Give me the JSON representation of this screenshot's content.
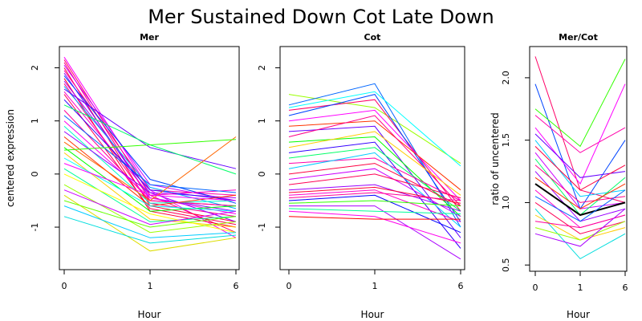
{
  "title": "Mer Sustained Down Cot Late Down",
  "chart_data": [
    {
      "type": "line",
      "title": "Mer",
      "xlabel": "Hour",
      "ylabel": "centered expression",
      "x": [
        "0",
        "1",
        "6"
      ],
      "xticks": [
        "0",
        "1",
        "6"
      ],
      "yticks": [
        "-1",
        "0",
        "1",
        "2"
      ],
      "ylim": [
        -1.8,
        2.4
      ],
      "series": [
        {
          "values": [
            2.2,
            -0.3,
            -1.2
          ],
          "color": "#ff00ff"
        },
        {
          "values": [
            2.15,
            -0.4,
            -1.1
          ],
          "color": "#ff0066"
        },
        {
          "values": [
            2.1,
            -0.5,
            -0.6
          ],
          "color": "#ff0080"
        },
        {
          "values": [
            2.05,
            -0.2,
            -0.5
          ],
          "color": "#cc00ff"
        },
        {
          "values": [
            2.0,
            -0.6,
            -0.9
          ],
          "color": "#ff0040"
        },
        {
          "values": [
            1.95,
            -0.3,
            -0.4
          ],
          "color": "#ff00aa"
        },
        {
          "values": [
            1.9,
            -0.45,
            -0.7
          ],
          "color": "#8800ff"
        },
        {
          "values": [
            1.85,
            -0.1,
            -0.55
          ],
          "color": "#0044ff"
        },
        {
          "values": [
            1.8,
            -0.7,
            -1.0
          ],
          "color": "#ff0033"
        },
        {
          "values": [
            1.75,
            -0.35,
            -0.45
          ],
          "color": "#aa00ff"
        },
        {
          "values": [
            1.7,
            -0.55,
            -0.8
          ],
          "color": "#ff0088"
        },
        {
          "values": [
            1.65,
            -0.25,
            -0.65
          ],
          "color": "#00aaff"
        },
        {
          "values": [
            1.6,
            0.5,
            0.1
          ],
          "color": "#6600ff"
        },
        {
          "values": [
            1.55,
            -0.4,
            -0.3
          ],
          "color": "#ff00cc"
        },
        {
          "values": [
            1.5,
            -0.65,
            -0.95
          ],
          "color": "#ff0055"
        },
        {
          "values": [
            1.4,
            -0.3,
            -0.5
          ],
          "color": "#3300ff"
        },
        {
          "values": [
            1.3,
            0.55,
            0.0
          ],
          "color": "#00ff66"
        },
        {
          "values": [
            1.2,
            -0.5,
            -0.6
          ],
          "color": "#ff0099"
        },
        {
          "values": [
            1.1,
            -0.2,
            -0.35
          ],
          "color": "#0066ff"
        },
        {
          "values": [
            1.0,
            -0.45,
            -0.75
          ],
          "color": "#ff00ee"
        },
        {
          "values": [
            0.9,
            -0.55,
            -0.5
          ],
          "color": "#00ffcc"
        },
        {
          "values": [
            0.8,
            -0.35,
            -0.9
          ],
          "color": "#9900ff"
        },
        {
          "values": [
            0.7,
            -0.6,
            -0.4
          ],
          "color": "#ff3300"
        },
        {
          "values": [
            0.6,
            -0.5,
            0.7
          ],
          "color": "#ff6600"
        },
        {
          "values": [
            0.5,
            -0.7,
            -0.6
          ],
          "color": "#00ff00"
        },
        {
          "values": [
            0.45,
            0.55,
            0.65
          ],
          "color": "#33ff00"
        },
        {
          "values": [
            0.4,
            -0.85,
            -1.0
          ],
          "color": "#ffcc00"
        },
        {
          "values": [
            0.3,
            -0.6,
            -0.7
          ],
          "color": "#00ffff"
        },
        {
          "values": [
            0.2,
            -0.4,
            -0.5
          ],
          "color": "#ff00ff"
        },
        {
          "values": [
            0.1,
            -0.9,
            -0.8
          ],
          "color": "#00ff99"
        },
        {
          "values": [
            0.0,
            -0.75,
            -1.1
          ],
          "color": "#ffff00"
        },
        {
          "values": [
            -0.2,
            -1.1,
            -0.9
          ],
          "color": "#99ff00"
        },
        {
          "values": [
            -0.3,
            -0.95,
            -0.7
          ],
          "color": "#cc00ff"
        },
        {
          "values": [
            -0.4,
            -1.45,
            -1.2
          ],
          "color": "#dddd00"
        },
        {
          "values": [
            -0.5,
            -1.0,
            -0.8
          ],
          "color": "#66ff00"
        },
        {
          "values": [
            -0.6,
            -1.2,
            -1.1
          ],
          "color": "#00ccff"
        },
        {
          "values": [
            -0.8,
            -1.3,
            -1.15
          ],
          "color": "#00dddd"
        }
      ]
    },
    {
      "type": "line",
      "title": "Cot",
      "xlabel": "Hour",
      "ylabel": "",
      "x": [
        "0",
        "1",
        "6"
      ],
      "xticks": [
        "0",
        "1",
        "6"
      ],
      "yticks": [
        "-1",
        "0",
        "1",
        "2"
      ],
      "ylim": [
        -1.8,
        2.4
      ],
      "series": [
        {
          "values": [
            1.5,
            1.25,
            0.2
          ],
          "color": "#99ff00"
        },
        {
          "values": [
            1.3,
            1.7,
            -1.0
          ],
          "color": "#0066ff"
        },
        {
          "values": [
            1.25,
            1.55,
            0.15
          ],
          "color": "#00ffff"
        },
        {
          "values": [
            1.2,
            1.4,
            -0.7
          ],
          "color": "#ff0066"
        },
        {
          "values": [
            1.1,
            1.5,
            -0.9
          ],
          "color": "#0044ff"
        },
        {
          "values": [
            1.0,
            1.2,
            -0.5
          ],
          "color": "#ff00ff"
        },
        {
          "values": [
            0.9,
            1.0,
            -0.3
          ],
          "color": "#ff3300"
        },
        {
          "values": [
            0.8,
            0.9,
            -1.2
          ],
          "color": "#6600ff"
        },
        {
          "values": [
            0.7,
            1.1,
            -0.6
          ],
          "color": "#ff0088"
        },
        {
          "values": [
            0.6,
            0.7,
            -0.8
          ],
          "color": "#00ff00"
        },
        {
          "values": [
            0.5,
            0.8,
            -0.4
          ],
          "color": "#ffcc00"
        },
        {
          "values": [
            0.4,
            0.6,
            -1.4
          ],
          "color": "#3300ff"
        },
        {
          "values": [
            0.3,
            0.5,
            -0.7
          ],
          "color": "#00ff66"
        },
        {
          "values": [
            0.2,
            0.3,
            -0.5
          ],
          "color": "#ff00aa"
        },
        {
          "values": [
            0.1,
            0.4,
            -1.0
          ],
          "color": "#00ccff"
        },
        {
          "values": [
            0.0,
            0.2,
            -0.6
          ],
          "color": "#ff0040"
        },
        {
          "values": [
            -0.1,
            0.1,
            -0.8
          ],
          "color": "#cc00ff"
        },
        {
          "values": [
            -0.2,
            0.0,
            -0.45
          ],
          "color": "#ff0055"
        },
        {
          "values": [
            -0.3,
            -0.2,
            -0.7
          ],
          "color": "#9900ff"
        },
        {
          "values": [
            -0.35,
            -0.25,
            -0.55
          ],
          "color": "#ff0033"
        },
        {
          "values": [
            -0.4,
            -0.3,
            -0.9
          ],
          "color": "#ff00cc"
        },
        {
          "values": [
            -0.45,
            -0.35,
            -0.5
          ],
          "color": "#ff0099"
        },
        {
          "values": [
            -0.5,
            -0.4,
            -1.1
          ],
          "color": "#0000ff"
        },
        {
          "values": [
            -0.55,
            -0.5,
            -0.6
          ],
          "color": "#33ff00"
        },
        {
          "values": [
            -0.6,
            -0.6,
            -1.6
          ],
          "color": "#aa00ff"
        },
        {
          "values": [
            -0.65,
            -0.7,
            -0.75
          ],
          "color": "#00ff99"
        },
        {
          "values": [
            -0.7,
            -0.8,
            -1.3
          ],
          "color": "#ff00ee"
        },
        {
          "values": [
            -0.8,
            -0.85,
            -0.85
          ],
          "color": "#ff0000"
        }
      ]
    },
    {
      "type": "line",
      "title": "Mer/Cot",
      "xlabel": "Hour",
      "ylabel": "ratio of uncentered",
      "x": [
        "0",
        "1",
        "6"
      ],
      "xticks": [
        "0",
        "1",
        "6"
      ],
      "yticks": [
        "0.5",
        "1.0",
        "1.5",
        "2.0"
      ],
      "ylim": [
        0.45,
        2.25
      ],
      "series": [
        {
          "values": [
            2.17,
            1.1,
            1.0
          ],
          "color": "#ff0066"
        },
        {
          "values": [
            1.95,
            0.95,
            1.5
          ],
          "color": "#0044ff"
        },
        {
          "values": [
            1.75,
            1.45,
            2.15
          ],
          "color": "#33ff00"
        },
        {
          "values": [
            1.7,
            1.4,
            1.6
          ],
          "color": "#ff00aa"
        },
        {
          "values": [
            1.6,
            1.15,
            1.95
          ],
          "color": "#ff00ff"
        },
        {
          "values": [
            1.55,
            1.2,
            1.25
          ],
          "color": "#6600ff"
        },
        {
          "values": [
            1.5,
            1.05,
            1.1
          ],
          "color": "#00ccff"
        },
        {
          "values": [
            1.45,
            1.1,
            1.3
          ],
          "color": "#ff0040"
        },
        {
          "values": [
            1.4,
            0.95,
            1.0
          ],
          "color": "#cc00ff"
        },
        {
          "values": [
            1.35,
            0.9,
            1.2
          ],
          "color": "#00ff66"
        },
        {
          "values": [
            1.3,
            1.0,
            1.05
          ],
          "color": "#ff0088"
        },
        {
          "values": [
            1.25,
            0.85,
            0.95
          ],
          "color": "#9900ff"
        },
        {
          "values": [
            1.2,
            0.95,
            1.15
          ],
          "color": "#ff3300"
        },
        {
          "values": [
            1.15,
            0.9,
            1.0
          ],
          "color": "#000000"
        },
        {
          "values": [
            1.1,
            0.8,
            0.9
          ],
          "color": "#ff00cc"
        },
        {
          "values": [
            1.05,
            0.85,
            1.1
          ],
          "color": "#0066ff"
        },
        {
          "values": [
            1.0,
            0.75,
            0.85
          ],
          "color": "#ff0055"
        },
        {
          "values": [
            0.95,
            0.55,
            0.75
          ],
          "color": "#00dddd"
        },
        {
          "values": [
            0.9,
            0.7,
            0.8
          ],
          "color": "#ffcc00"
        },
        {
          "values": [
            0.85,
            0.8,
            0.9
          ],
          "color": "#ff0099"
        },
        {
          "values": [
            0.8,
            0.7,
            0.85
          ],
          "color": "#99ff00"
        },
        {
          "values": [
            0.75,
            0.65,
            0.95
          ],
          "color": "#aa00ff"
        }
      ]
    }
  ]
}
